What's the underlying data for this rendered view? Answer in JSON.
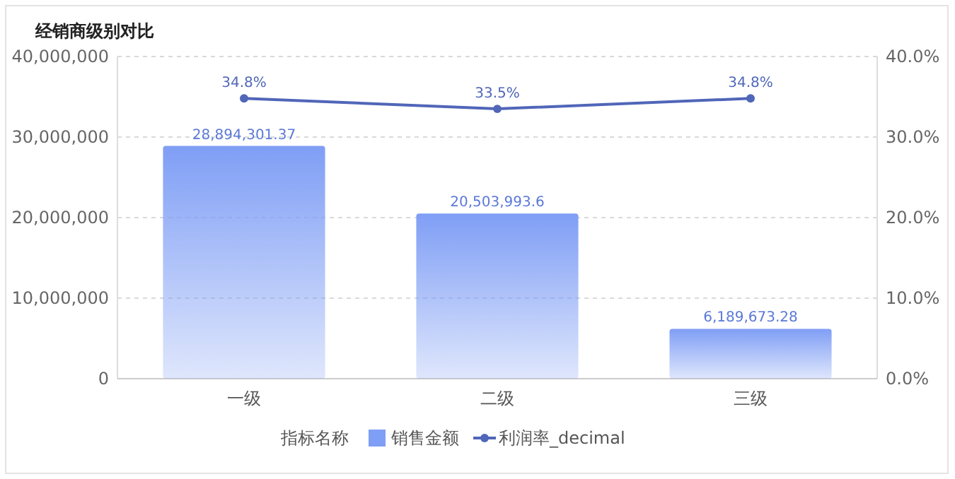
{
  "chart_data": {
    "type": "bar",
    "title": "经销商级别对比",
    "categories": [
      "一级",
      "二级",
      "三级"
    ],
    "series": [
      {
        "name": "销售金额",
        "color": "#7f9ef5",
        "values": [
          28894301.37,
          20503993.6,
          6189673.28
        ],
        "value_labels": [
          "28,894,301.37",
          "20,503,993.6",
          "6,189,673.28"
        ]
      },
      {
        "name": "利润率_decimal",
        "type": "line",
        "axis": "y2",
        "color": "#5066b8",
        "values": [
          34.8,
          33.5,
          34.8
        ],
        "value_labels": [
          "34.8%",
          "33.5%",
          "34.8%"
        ]
      }
    ],
    "ylim": [
      0,
      40000000
    ],
    "yticks": [
      0,
      {
        "value": 10000000,
        "label": "10,000,000"
      },
      {
        "value": 20000000,
        "label": "20,000,000"
      },
      {
        "value": 30000000,
        "label": "30,000,000"
      },
      {
        "value": 40000000,
        "label": "40,000,000"
      }
    ],
    "y2lim": [
      0,
      40
    ],
    "y2ticks": [
      {
        "value": 0,
        "label": "0.0%"
      },
      {
        "value": 10,
        "label": "10.0%"
      },
      {
        "value": 20,
        "label": "20.0%"
      },
      {
        "value": 30,
        "label": "30.0%"
      },
      {
        "value": 40,
        "label": "40.0%"
      }
    ],
    "grid": "y",
    "legend": "bottom",
    "legend_title": "指标名称",
    "marker": "circle",
    "line_style": "solid"
  }
}
